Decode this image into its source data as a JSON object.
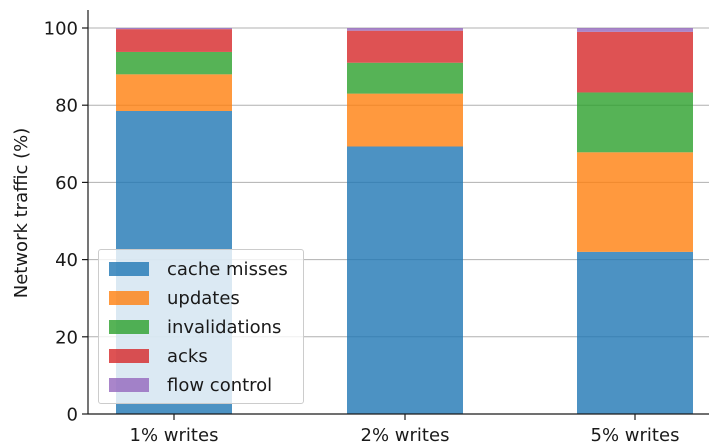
{
  "chart_data": {
    "type": "bar",
    "stacked": true,
    "ylabel": "Network traffic (%)",
    "xlabel": "",
    "ylim": [
      0,
      100
    ],
    "yticks": [
      0,
      20,
      40,
      60,
      80,
      100
    ],
    "grid": "horizontal",
    "legend_position": "lower-left",
    "categories": [
      "1% writes",
      "2% writes",
      "5% writes"
    ],
    "series": [
      {
        "name": "cache misses",
        "color": "#1f77b4",
        "values": [
          78.5,
          69.3,
          42.0
        ]
      },
      {
        "name": "updates",
        "color": "#ff7f0e",
        "values": [
          9.5,
          13.7,
          25.8
        ]
      },
      {
        "name": "invalidations",
        "color": "#2ca02c",
        "values": [
          5.8,
          8.0,
          15.5
        ]
      },
      {
        "name": "acks",
        "color": "#d62728",
        "values": [
          5.9,
          8.3,
          15.7
        ]
      },
      {
        "name": "flow control",
        "color": "#9467bd",
        "values": [
          0.3,
          0.7,
          1.0
        ]
      }
    ]
  }
}
